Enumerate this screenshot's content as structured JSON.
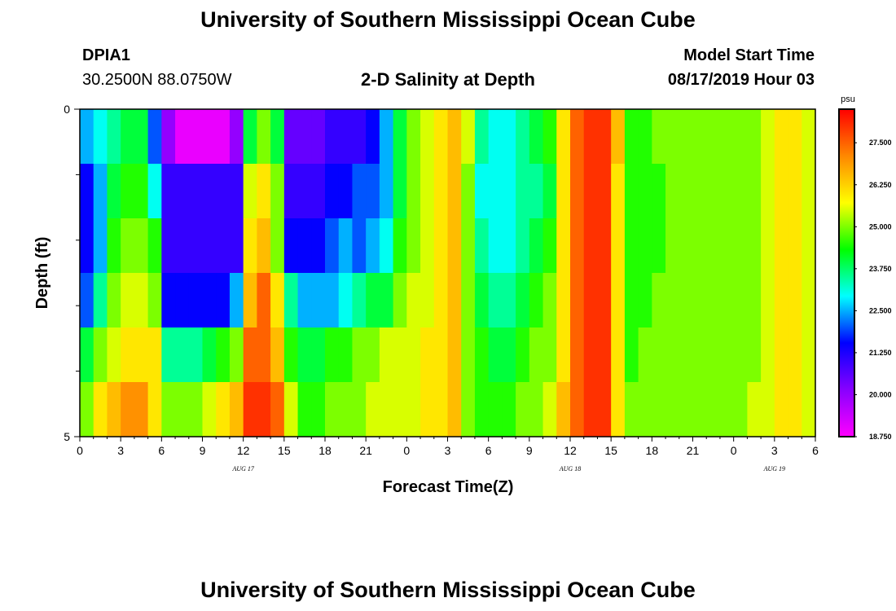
{
  "header": {
    "title": "University of Southern Mississippi Ocean Cube",
    "station_id": "DPIA1",
    "station_coords": "30.2500N 88.0750W",
    "plot_title": "2-D Salinity at Depth",
    "model_start_label": "Model Start Time",
    "model_start_value": "08/17/2019 Hour 03"
  },
  "footer": {
    "title": "University of Southern Mississippi Ocean Cube"
  },
  "chart_data": {
    "type": "heatmap",
    "title": "2-D Salinity at Depth",
    "xlabel": "Forecast Time(Z)",
    "ylabel": "Depth (ft)",
    "x_tick_labels": [
      "0",
      "3",
      "6",
      "9",
      "12",
      "15",
      "18",
      "21",
      "0",
      "3",
      "6",
      "9",
      "12",
      "15",
      "18",
      "21",
      "0",
      "3",
      "6"
    ],
    "date_labels": [
      {
        "text": "AUG 17",
        "hour": 12
      },
      {
        "text": "AUG 18",
        "hour": 36
      },
      {
        "text": "AUG 19",
        "hour": 51
      }
    ],
    "x_range_hours": [
      0,
      54
    ],
    "x_major_step_hours": 3,
    "x_minor_step_hours": 1,
    "y_tick_labels": [
      "0",
      "5"
    ],
    "y_range": [
      0,
      5
    ],
    "y_minor_ticks": 5,
    "colorbar": {
      "unit": "psu",
      "min": 18.75,
      "max": 28.5,
      "tick_values": [
        18.75,
        20.0,
        21.25,
        22.5,
        23.75,
        25.0,
        26.25,
        27.5
      ],
      "tick_labels": [
        "18.750",
        "20.000",
        "21.250",
        "22.500",
        "23.750",
        "25.000",
        "26.250",
        "27.500"
      ],
      "colors": [
        "#ff00ff",
        "#8800ff",
        "#0000ff",
        "#00ffff",
        "#00ff00",
        "#ffff00",
        "#ff8800",
        "#ff0000"
      ]
    },
    "row_labels_depth_ft": [
      0,
      1,
      2,
      3,
      4,
      5
    ],
    "column_hours": [
      0,
      1,
      2,
      3,
      4,
      5,
      6,
      7,
      8,
      9,
      10,
      11,
      12,
      13,
      14,
      15,
      16,
      17,
      18,
      19,
      20,
      21,
      22,
      23,
      24,
      25,
      26,
      27,
      28,
      29,
      30,
      31,
      32,
      33,
      34,
      35,
      36,
      37,
      38,
      39,
      40,
      41,
      42,
      43,
      44,
      45,
      46,
      47,
      48,
      49,
      50,
      51,
      52,
      53
    ],
    "values": [
      [
        22.5,
        23.0,
        23.5,
        24.0,
        24.0,
        22.0,
        20.0,
        19.0,
        19.0,
        19.0,
        19.0,
        20.0,
        24.0,
        25.0,
        24.0,
        20.5,
        20.5,
        20.5,
        21.0,
        21.0,
        21.0,
        21.5,
        22.5,
        24.0,
        25.0,
        25.5,
        26.0,
        26.5,
        25.5,
        23.5,
        23.0,
        23.0,
        23.5,
        24.0,
        24.5,
        26.0,
        27.5,
        28.0,
        28.0,
        26.5,
        24.5,
        24.5,
        25.0,
        25.0,
        25.0,
        25.0,
        25.0,
        25.0,
        25.0,
        25.0,
        25.5,
        26.0,
        26.0,
        25.5
      ],
      [
        21.5,
        22.5,
        24.0,
        24.5,
        24.5,
        23.0,
        21.0,
        21.0,
        21.0,
        21.0,
        21.0,
        21.0,
        25.5,
        26.0,
        25.0,
        21.0,
        21.0,
        21.0,
        21.5,
        21.5,
        22.0,
        22.0,
        22.5,
        24.0,
        25.0,
        25.5,
        26.0,
        26.5,
        25.0,
        23.0,
        23.0,
        23.0,
        23.5,
        23.5,
        24.0,
        26.0,
        27.5,
        28.0,
        28.0,
        26.0,
        24.5,
        24.5,
        24.5,
        25.0,
        25.0,
        25.0,
        25.0,
        25.0,
        25.0,
        25.0,
        25.5,
        26.0,
        26.0,
        25.5
      ],
      [
        21.5,
        22.5,
        24.5,
        25.0,
        25.0,
        24.5,
        21.0,
        21.0,
        21.0,
        21.0,
        21.0,
        21.0,
        26.0,
        26.5,
        25.0,
        21.5,
        21.5,
        21.5,
        22.0,
        22.5,
        22.0,
        22.5,
        23.0,
        24.5,
        25.0,
        25.5,
        26.0,
        26.5,
        25.0,
        23.5,
        23.0,
        23.0,
        23.5,
        24.0,
        24.5,
        26.0,
        27.5,
        28.0,
        28.0,
        26.0,
        24.5,
        24.5,
        24.5,
        25.0,
        25.0,
        25.0,
        25.0,
        25.0,
        25.0,
        25.0,
        25.5,
        26.0,
        26.0,
        25.5
      ],
      [
        22.0,
        23.5,
        25.0,
        25.5,
        25.5,
        25.0,
        21.5,
        21.5,
        21.5,
        21.5,
        21.5,
        22.5,
        26.5,
        27.5,
        26.0,
        23.5,
        22.5,
        22.5,
        22.5,
        23.0,
        23.5,
        24.0,
        24.0,
        25.0,
        25.5,
        25.5,
        26.0,
        26.5,
        25.0,
        24.0,
        23.5,
        23.5,
        24.0,
        24.5,
        25.0,
        26.0,
        27.5,
        28.0,
        28.0,
        26.0,
        24.5,
        24.5,
        25.0,
        25.0,
        25.0,
        25.0,
        25.0,
        25.0,
        25.0,
        25.0,
        25.5,
        26.0,
        26.0,
        25.5
      ],
      [
        24.0,
        25.0,
        25.5,
        26.0,
        26.0,
        26.0,
        23.5,
        23.5,
        23.5,
        24.0,
        24.5,
        25.0,
        27.5,
        27.5,
        26.5,
        24.5,
        24.0,
        24.0,
        24.5,
        24.5,
        25.0,
        25.0,
        25.5,
        25.5,
        25.5,
        26.0,
        26.0,
        26.5,
        25.0,
        24.5,
        24.0,
        24.0,
        24.5,
        25.0,
        25.0,
        26.0,
        27.5,
        28.0,
        28.0,
        26.0,
        24.5,
        25.0,
        25.0,
        25.0,
        25.0,
        25.0,
        25.0,
        25.0,
        25.0,
        25.0,
        25.5,
        26.0,
        26.0,
        25.5
      ],
      [
        25.0,
        26.0,
        26.5,
        27.0,
        27.0,
        26.0,
        25.0,
        25.0,
        25.0,
        25.5,
        26.0,
        26.5,
        28.0,
        28.0,
        27.5,
        25.5,
        24.5,
        24.5,
        25.0,
        25.0,
        25.0,
        25.5,
        25.5,
        25.5,
        25.5,
        26.0,
        26.0,
        26.5,
        25.0,
        24.5,
        24.5,
        24.5,
        25.0,
        25.0,
        25.5,
        26.5,
        27.5,
        28.0,
        28.0,
        26.0,
        25.0,
        25.0,
        25.0,
        25.0,
        25.0,
        25.0,
        25.0,
        25.0,
        25.0,
        25.5,
        25.5,
        26.0,
        26.0,
        25.5
      ]
    ]
  }
}
